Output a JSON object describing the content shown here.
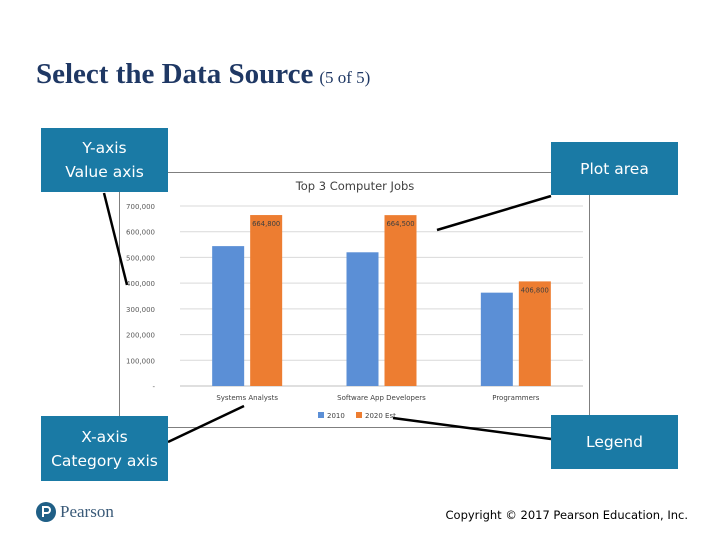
{
  "slide": {
    "title": "Select the Data Source",
    "title_suffix": "(5 of 5)"
  },
  "callouts": {
    "y_axis": "Y-axis\nValue axis",
    "plot_area": "Plot area",
    "x_axis": "X-axis\nCategory axis",
    "legend": "Legend"
  },
  "footer": {
    "logo_text": "Pearson",
    "copyright": "Copyright © 2017 Pearson Education, Inc."
  },
  "colors": {
    "title": "#1f3864",
    "callout_bg": "#1a7aa5",
    "series_2010": "#5b8fd6",
    "series_2020": "#ed7d31"
  },
  "chart_data": {
    "type": "bar",
    "title": "Top 3 Computer Jobs",
    "categories": [
      "Systems Analysts",
      "Software App Developers",
      "Programmers"
    ],
    "series": [
      {
        "name": "2010",
        "values": [
          544000,
          520000,
          363000
        ],
        "labels": [
          "",
          "",
          ""
        ]
      },
      {
        "name": "2020 Est.",
        "legend_text": "2020 Est",
        "values": [
          664800,
          664500,
          406800
        ],
        "labels": [
          "664,800",
          "664,500",
          "406,800"
        ]
      }
    ],
    "ylim": [
      0,
      700000
    ],
    "yticks": [
      "-",
      "100,000",
      "200,000",
      "300,000",
      "400,000",
      "500,000",
      "600,000",
      "700,000"
    ],
    "grid": true,
    "legend_position": "bottom"
  }
}
